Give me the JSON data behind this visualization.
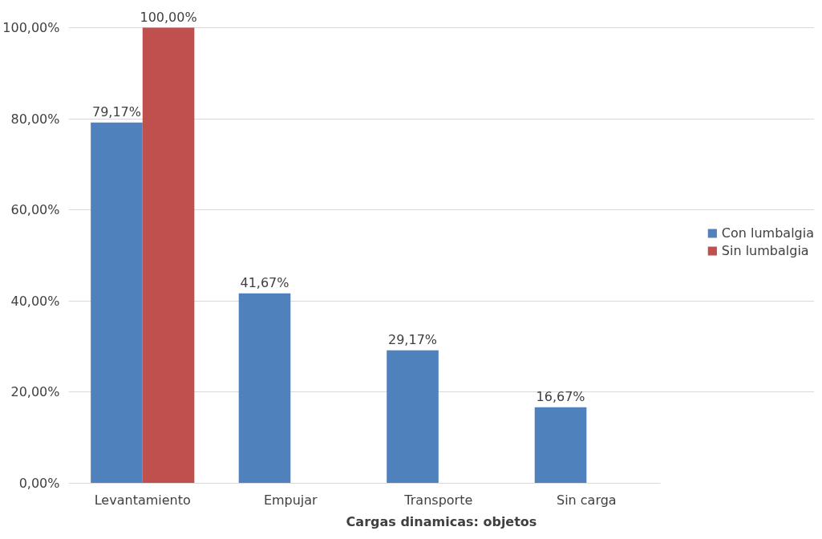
{
  "chart_data": {
    "type": "bar",
    "xlabel": "Cargas dinamicas: objetos",
    "categories": [
      "Levantamiento",
      "Empujar",
      "Transporte",
      "Sin carga"
    ],
    "series": [
      {
        "name": "Con lumbalgia",
        "color": "#4f81bd",
        "values": [
          79.17,
          41.67,
          29.17,
          16.67
        ],
        "value_labels": [
          "79,17%",
          "41,67%",
          "29,17%",
          "16,67%"
        ]
      },
      {
        "name": "Sin lumbalgia",
        "color": "#c0504d",
        "values": [
          100,
          null,
          null,
          null
        ],
        "value_labels": [
          "100,00%",
          null,
          null,
          null
        ]
      }
    ],
    "ylim": [
      0,
      100
    ],
    "yticks": [
      {
        "value": 0,
        "label": "0,00%"
      },
      {
        "value": 20,
        "label": "20,00%"
      },
      {
        "value": 40,
        "label": "40,00%"
      },
      {
        "value": 60,
        "label": "60,00%"
      },
      {
        "value": 80,
        "label": "80,00%"
      },
      {
        "value": 100,
        "label": "100,00%"
      }
    ],
    "grid": "y",
    "legend": "right"
  }
}
